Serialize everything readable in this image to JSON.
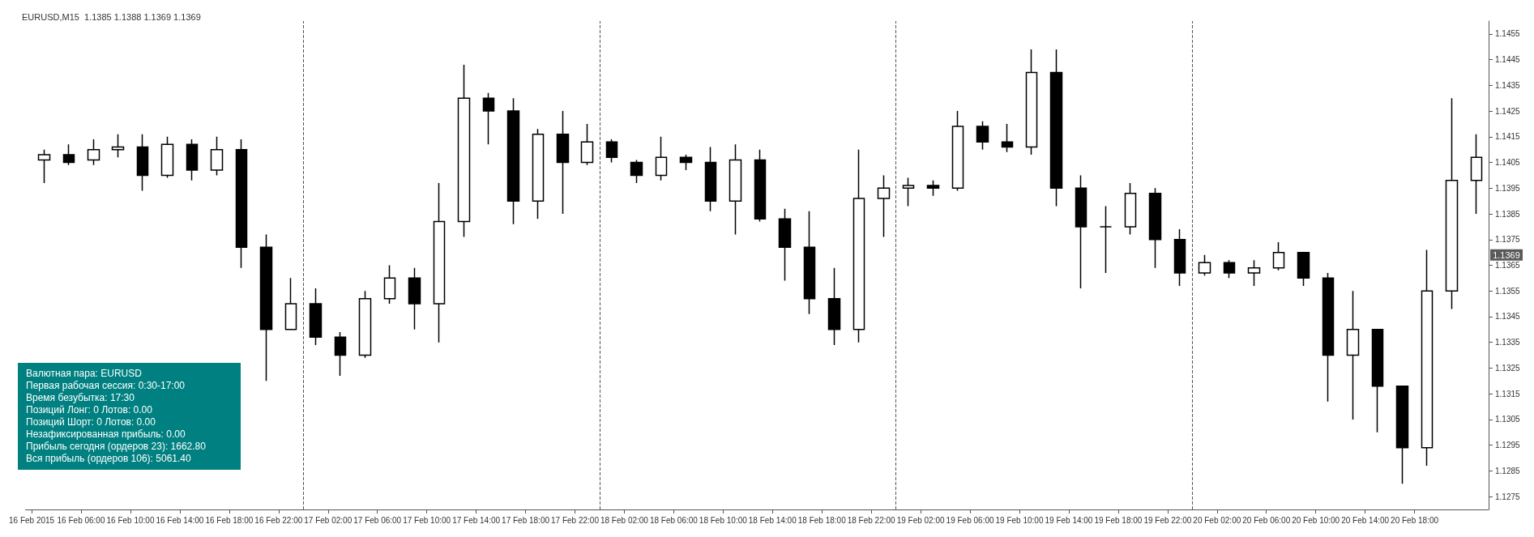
{
  "chart_data": {
    "type": "candlestick",
    "title": "EURUSD,M15  1.1385 1.1388 1.1369 1.1369",
    "annotations": [
      "Валютная пара:  EURUSD",
      "Первая рабочая сессия:  0:30-17:00",
      "Время безубытка:  17:30",
      "Позиций Лонг:  0   Лотов:  0.00",
      "Позиций Шорт:  0   Лотов:  0.00",
      "Незафиксированная прибыль:  0.00",
      "Прибыль сегодня (ордеров 23):  1662.80",
      "Вся прибыль (ордеров 106):  5061.40",
      {
        "text": "1.1369",
        "y": 1.1369
      }
    ],
    "x": [
      "2015-02-16T03:00",
      "2015-02-16T05:00",
      "2015-02-16T07:00",
      "2015-02-16T09:00",
      "2015-02-16T11:00",
      "2015-02-16T13:00",
      "2015-02-16T15:00",
      "2015-02-16T17:00",
      "2015-02-16T19:00",
      "2015-02-16T21:00",
      "2015-02-16T23:00",
      "2015-02-17T01:00",
      "2015-02-17T03:00",
      "2015-02-17T05:00",
      "2015-02-17T07:00",
      "2015-02-17T09:00",
      "2015-02-17T11:00",
      "2015-02-17T13:00",
      "2015-02-17T15:00",
      "2015-02-17T17:00",
      "2015-02-17T19:00",
      "2015-02-17T21:00",
      "2015-02-17T23:00",
      "2015-02-18T01:00",
      "2015-02-18T03:00",
      "2015-02-18T05:00",
      "2015-02-18T07:00",
      "2015-02-18T09:00",
      "2015-02-18T11:00",
      "2015-02-18T13:00",
      "2015-02-18T15:00",
      "2015-02-18T17:00",
      "2015-02-18T19:00",
      "2015-02-18T21:00",
      "2015-02-18T23:00",
      "2015-02-19T01:00",
      "2015-02-19T03:00",
      "2015-02-19T05:00",
      "2015-02-19T07:00",
      "2015-02-19T09:00",
      "2015-02-19T11:00",
      "2015-02-19T13:00",
      "2015-02-19T15:00",
      "2015-02-19T17:00",
      "2015-02-19T19:00",
      "2015-02-19T21:00",
      "2015-02-19T23:00",
      "2015-02-20T01:00",
      "2015-02-20T03:00",
      "2015-02-20T05:00",
      "2015-02-20T07:00",
      "2015-02-20T09:00",
      "2015-02-20T11:00",
      "2015-02-20T13:00",
      "2015-02-20T15:00",
      "2015-02-20T17:00",
      "2015-02-20T19:00",
      "2015-02-20T21:00",
      "2015-02-20T23:00"
    ],
    "ohlc": [
      [
        1.1406,
        1.141,
        1.1397,
        1.1408
      ],
      [
        1.1408,
        1.1412,
        1.1404,
        1.1405
      ],
      [
        1.1406,
        1.1414,
        1.1404,
        1.141
      ],
      [
        1.141,
        1.1416,
        1.1407,
        1.1411
      ],
      [
        1.1411,
        1.1416,
        1.1394,
        1.14
      ],
      [
        1.14,
        1.1415,
        1.1399,
        1.1412
      ],
      [
        1.1412,
        1.1414,
        1.1398,
        1.1402
      ],
      [
        1.1402,
        1.1415,
        1.14,
        1.141
      ],
      [
        1.141,
        1.1414,
        1.1364,
        1.1372
      ],
      [
        1.1372,
        1.1377,
        1.132,
        1.134
      ],
      [
        1.134,
        1.136,
        1.134,
        1.135
      ],
      [
        1.135,
        1.1356,
        1.1334,
        1.1337
      ],
      [
        1.1337,
        1.1339,
        1.1322,
        1.133
      ],
      [
        1.133,
        1.1355,
        1.1329,
        1.1352
      ],
      [
        1.1352,
        1.1365,
        1.135,
        1.136
      ],
      [
        1.136,
        1.1364,
        1.134,
        1.135
      ],
      [
        1.135,
        1.1397,
        1.1335,
        1.1382
      ],
      [
        1.1382,
        1.1443,
        1.1376,
        1.143
      ],
      [
        1.143,
        1.1432,
        1.1412,
        1.1425
      ],
      [
        1.1425,
        1.143,
        1.1381,
        1.139
      ],
      [
        1.139,
        1.1418,
        1.1383,
        1.1416
      ],
      [
        1.1416,
        1.1425,
        1.1385,
        1.1405
      ],
      [
        1.1405,
        1.142,
        1.1404,
        1.1413
      ],
      [
        1.1413,
        1.1414,
        1.1405,
        1.1407
      ],
      [
        1.1405,
        1.1406,
        1.1397,
        1.14
      ],
      [
        1.14,
        1.1415,
        1.1398,
        1.1407
      ],
      [
        1.1407,
        1.1408,
        1.1402,
        1.1405
      ],
      [
        1.1405,
        1.1411,
        1.1386,
        1.139
      ],
      [
        1.139,
        1.1412,
        1.1377,
        1.1406
      ],
      [
        1.1406,
        1.141,
        1.1382,
        1.1383
      ],
      [
        1.1383,
        1.1387,
        1.1359,
        1.1372
      ],
      [
        1.1372,
        1.1386,
        1.1346,
        1.1352
      ],
      [
        1.1352,
        1.1364,
        1.1334,
        1.134
      ],
      [
        1.134,
        1.141,
        1.1335,
        1.1391
      ],
      [
        1.1391,
        1.14,
        1.1376,
        1.1395
      ],
      [
        1.1395,
        1.1399,
        1.1388,
        1.1396
      ],
      [
        1.1396,
        1.1398,
        1.1392,
        1.1395
      ],
      [
        1.1395,
        1.1425,
        1.1394,
        1.1419
      ],
      [
        1.1419,
        1.1421,
        1.141,
        1.1413
      ],
      [
        1.1413,
        1.142,
        1.1409,
        1.1411
      ],
      [
        1.1411,
        1.1449,
        1.1408,
        1.144
      ],
      [
        1.144,
        1.1449,
        1.1388,
        1.1395
      ],
      [
        1.1395,
        1.14,
        1.1356,
        1.138
      ],
      [
        1.138,
        1.1388,
        1.1362,
        1.138
      ],
      [
        1.138,
        1.1397,
        1.1377,
        1.1393
      ],
      [
        1.1393,
        1.1395,
        1.1364,
        1.1375
      ],
      [
        1.1375,
        1.1379,
        1.1357,
        1.1362
      ],
      [
        1.1362,
        1.1369,
        1.1361,
        1.1366
      ],
      [
        1.1366,
        1.1367,
        1.136,
        1.1362
      ],
      [
        1.1362,
        1.1367,
        1.1357,
        1.1364
      ],
      [
        1.1364,
        1.1374,
        1.1363,
        1.137
      ],
      [
        1.137,
        1.137,
        1.1357,
        1.136
      ],
      [
        1.136,
        1.1362,
        1.1312,
        1.133
      ],
      [
        1.133,
        1.1355,
        1.1305,
        1.134
      ],
      [
        1.134,
        1.134,
        1.13,
        1.1318
      ],
      [
        1.1318,
        1.1318,
        1.128,
        1.1294
      ],
      [
        1.1294,
        1.1371,
        1.1287,
        1.1355
      ],
      [
        1.1355,
        1.143,
        1.1348,
        1.1398
      ],
      [
        1.1398,
        1.1416,
        1.1385,
        1.1407
      ]
    ],
    "xlim": [
      "2015-02-16T01:30",
      "2015-02-21T00:00"
    ],
    "xticks": [
      {
        "value": "2015-02-16T02:00",
        "label": "16 Feb 2015"
      },
      {
        "value": "2015-02-16T06:00",
        "label": "16 Feb 06:00"
      },
      {
        "value": "2015-02-16T10:00",
        "label": "16 Feb 10:00"
      },
      {
        "value": "2015-02-16T14:00",
        "label": "16 Feb 14:00"
      },
      {
        "value": "2015-02-16T18:00",
        "label": "16 Feb 18:00"
      },
      {
        "value": "2015-02-16T22:00",
        "label": "16 Feb 22:00"
      },
      {
        "value": "2015-02-17T02:00",
        "label": "17 Feb 02:00"
      },
      {
        "value": "2015-02-17T06:00",
        "label": "17 Feb 06:00"
      },
      {
        "value": "2015-02-17T10:00",
        "label": "17 Feb 10:00"
      },
      {
        "value": "2015-02-17T14:00",
        "label": "17 Feb 14:00"
      },
      {
        "value": "2015-02-17T18:00",
        "label": "17 Feb 18:00"
      },
      {
        "value": "2015-02-17T22:00",
        "label": "17 Feb 22:00"
      },
      {
        "value": "2015-02-18T02:00",
        "label": "18 Feb 02:00"
      },
      {
        "value": "2015-02-18T06:00",
        "label": "18 Feb 06:00"
      },
      {
        "value": "2015-02-18T10:00",
        "label": "18 Feb 10:00"
      },
      {
        "value": "2015-02-18T14:00",
        "label": "18 Feb 14:00"
      },
      {
        "value": "2015-02-18T18:00",
        "label": "18 Feb 18:00"
      },
      {
        "value": "2015-02-18T22:00",
        "label": "18 Feb 22:00"
      },
      {
        "value": "2015-02-19T02:00",
        "label": "19 Feb 02:00"
      },
      {
        "value": "2015-02-19T06:00",
        "label": "19 Feb 06:00"
      },
      {
        "value": "2015-02-19T10:00",
        "label": "19 Feb 10:00"
      },
      {
        "value": "2015-02-19T14:00",
        "label": "19 Feb 14:00"
      },
      {
        "value": "2015-02-19T18:00",
        "label": "19 Feb 18:00"
      },
      {
        "value": "2015-02-19T22:00",
        "label": "19 Feb 22:00"
      },
      {
        "value": "2015-02-20T02:00",
        "label": "20 Feb 02:00"
      },
      {
        "value": "2015-02-20T06:00",
        "label": "20 Feb 06:00"
      },
      {
        "value": "2015-02-20T10:00",
        "label": "20 Feb 10:00"
      },
      {
        "value": "2015-02-20T14:00",
        "label": "20 Feb 14:00"
      },
      {
        "value": "2015-02-20T18:00",
        "label": "20 Feb 18:00"
      }
    ],
    "ylim": [
      1.127,
      1.146
    ],
    "yticks": [
      1.1275,
      1.1285,
      1.1295,
      1.1305,
      1.1315,
      1.1325,
      1.1335,
      1.1345,
      1.1355,
      1.1365,
      1.1375,
      1.1385,
      1.1395,
      1.1405,
      1.1415,
      1.1425,
      1.1435,
      1.1445,
      1.1455
    ],
    "ref_lines": [
      {
        "axis": "x",
        "value": "2015-02-17T00:00",
        "line_style": "dashed",
        "color": "#555555"
      },
      {
        "axis": "x",
        "value": "2015-02-18T00:00",
        "line_style": "dashed",
        "color": "#555555"
      },
      {
        "axis": "x",
        "value": "2015-02-19T00:00",
        "line_style": "dashed",
        "color": "#555555"
      },
      {
        "axis": "x",
        "value": "2015-02-20T00:00",
        "line_style": "dashed",
        "color": "#555555"
      }
    ],
    "grid": false
  }
}
